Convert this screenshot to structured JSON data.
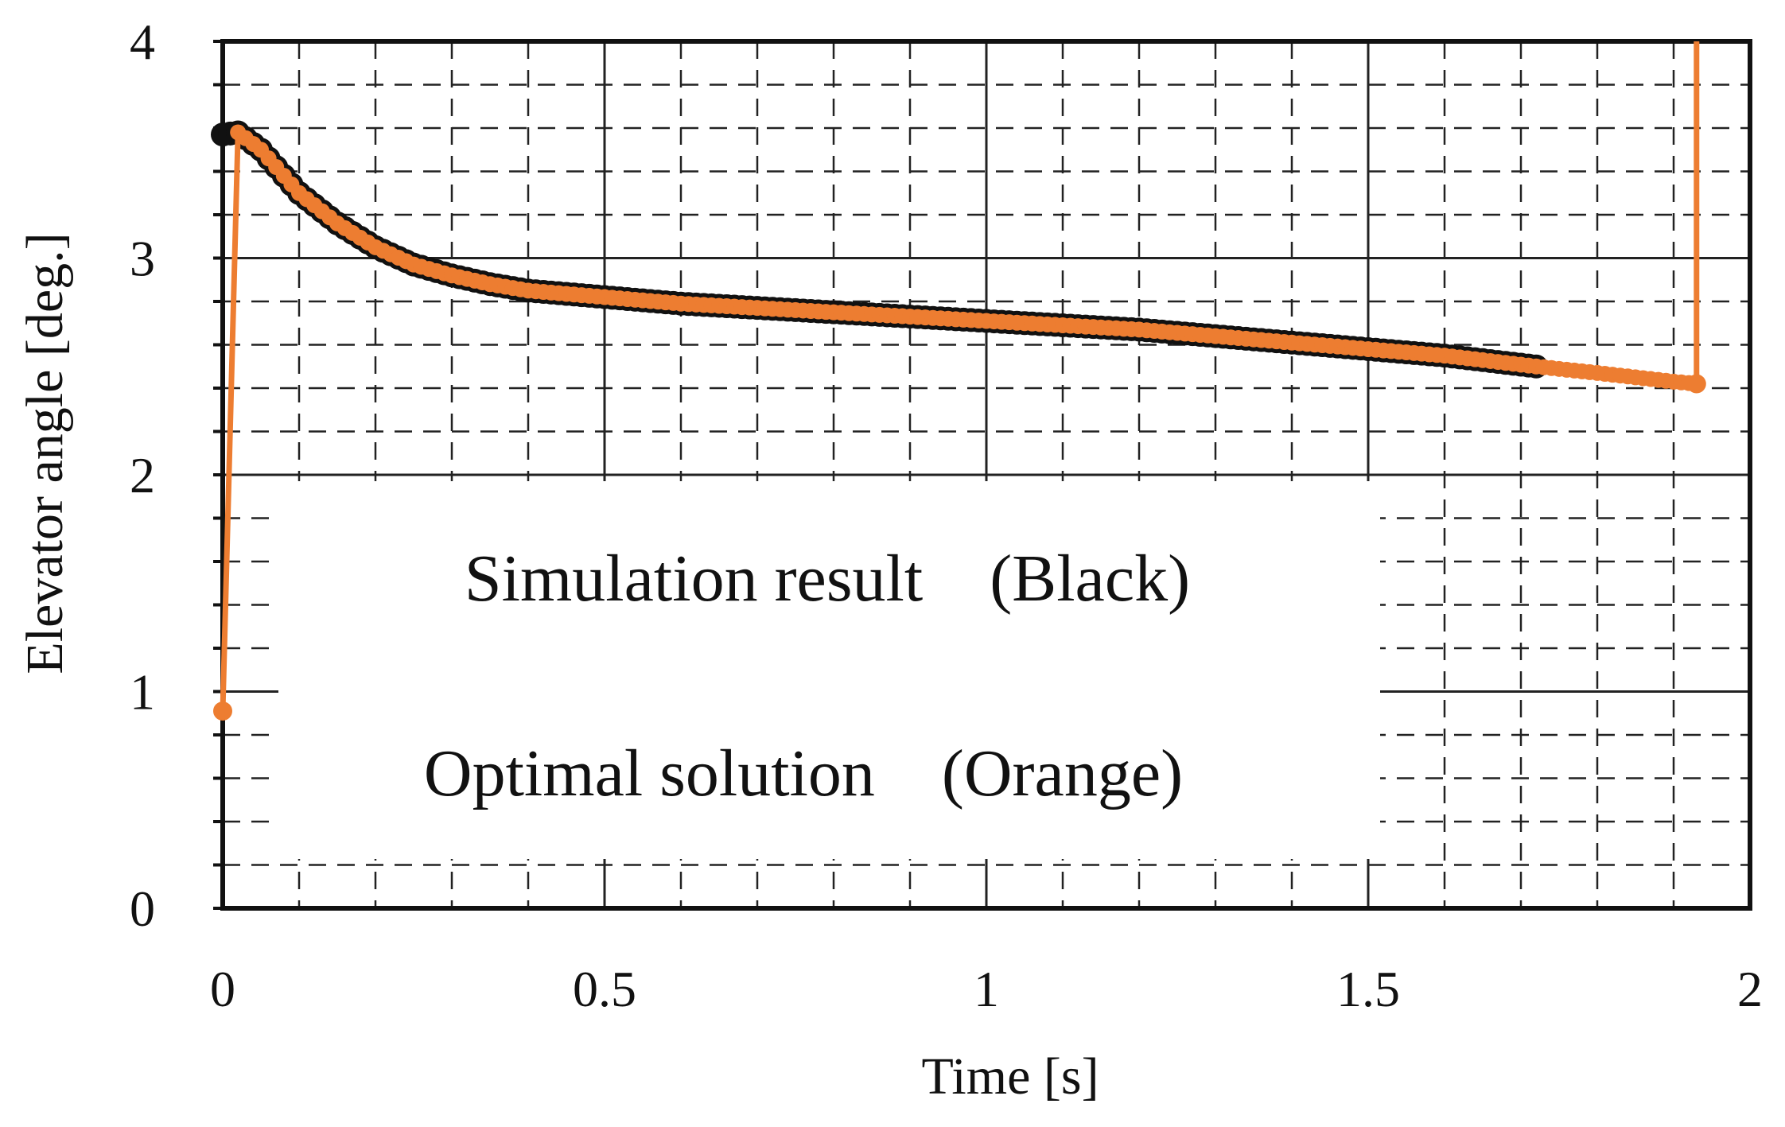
{
  "chart_data": {
    "type": "line",
    "title": "",
    "xlabel": "Time [s]",
    "ylabel": "Elevator angle [deg.]",
    "xlim": [
      0,
      2
    ],
    "ylim": [
      0,
      4
    ],
    "x_ticks": [
      "0",
      "0.5",
      "1",
      "1.5",
      "2"
    ],
    "y_ticks": [
      "0",
      "1",
      "2",
      "3",
      "4"
    ],
    "x_tick_values": [
      0,
      0.5,
      1,
      1.5,
      2
    ],
    "y_tick_values": [
      0,
      1,
      2,
      3,
      4
    ],
    "grid": "major solid, minor dashed",
    "annotations": [
      {
        "text": "Simulation result　(Black)"
      },
      {
        "text": "Optimal solution　(Orange)"
      }
    ],
    "series": [
      {
        "name": "Simulation result",
        "color": "#111111",
        "x": [
          0.0,
          0.02,
          0.05,
          0.08,
          0.1,
          0.15,
          0.2,
          0.25,
          0.3,
          0.35,
          0.4,
          0.5,
          0.6,
          0.7,
          0.8,
          0.9,
          1.0,
          1.1,
          1.2,
          1.3,
          1.4,
          1.5,
          1.6,
          1.72
        ],
        "y": [
          3.57,
          3.58,
          3.5,
          3.38,
          3.3,
          3.16,
          3.05,
          2.97,
          2.92,
          2.88,
          2.85,
          2.82,
          2.79,
          2.77,
          2.75,
          2.73,
          2.71,
          2.69,
          2.67,
          2.64,
          2.61,
          2.58,
          2.55,
          2.5
        ]
      },
      {
        "name": "Optimal solution",
        "color": "#ED7D31",
        "x": [
          0.0,
          0.02,
          0.05,
          0.08,
          0.1,
          0.15,
          0.2,
          0.25,
          0.3,
          0.35,
          0.4,
          0.5,
          0.6,
          0.7,
          0.8,
          0.9,
          1.0,
          1.1,
          1.2,
          1.3,
          1.4,
          1.5,
          1.6,
          1.72,
          1.8,
          1.9,
          1.93,
          1.93
        ],
        "y": [
          0.91,
          3.58,
          3.5,
          3.38,
          3.3,
          3.16,
          3.05,
          2.97,
          2.92,
          2.88,
          2.85,
          2.82,
          2.79,
          2.77,
          2.75,
          2.73,
          2.71,
          2.69,
          2.67,
          2.64,
          2.61,
          2.58,
          2.55,
          2.5,
          2.47,
          2.43,
          2.42,
          4.0
        ]
      }
    ]
  }
}
